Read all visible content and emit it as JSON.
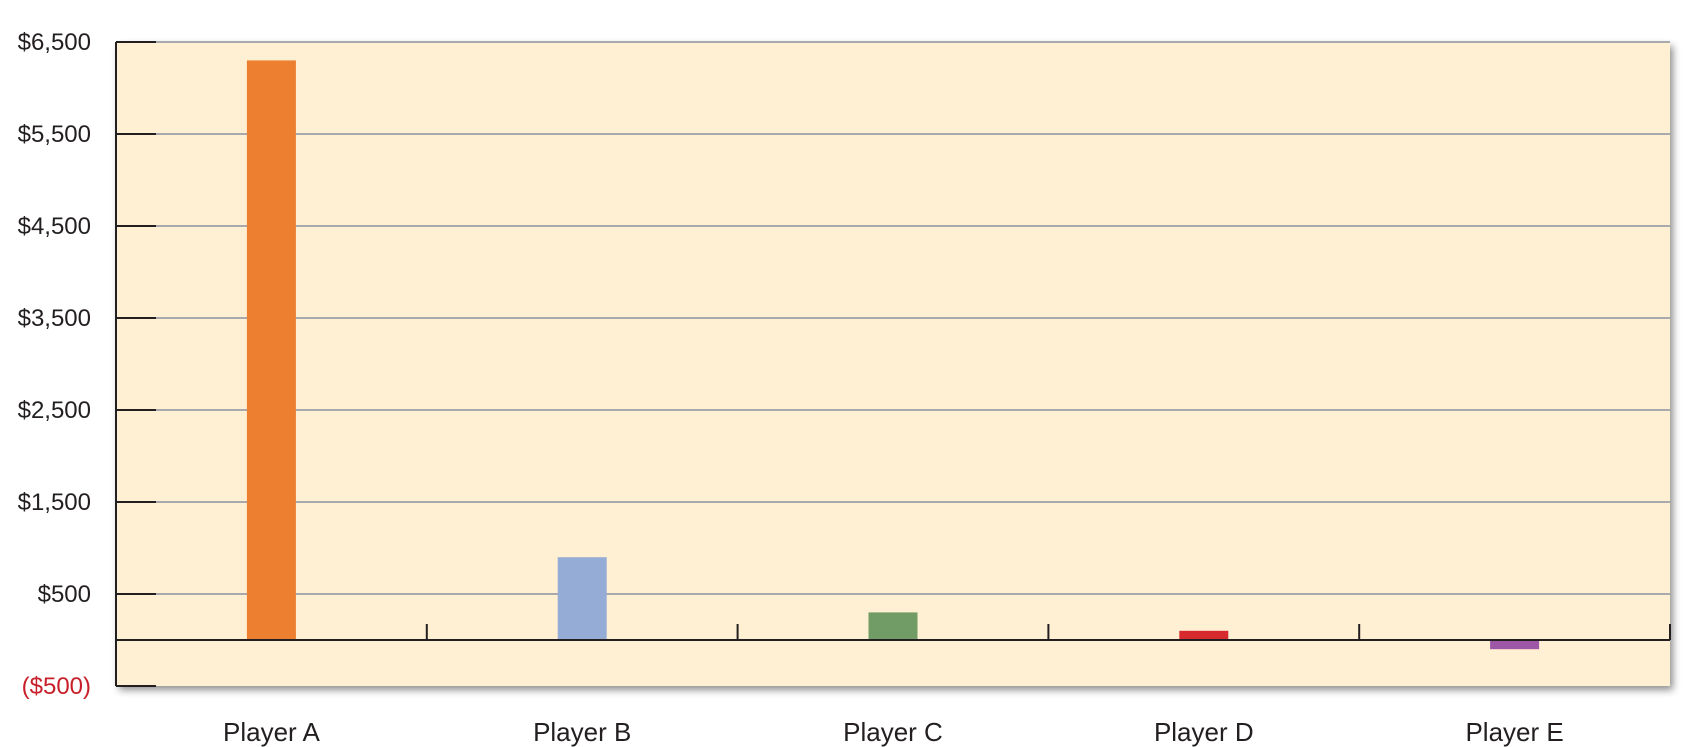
{
  "chart_data": {
    "type": "bar",
    "title": "",
    "xlabel": "",
    "ylabel": "",
    "categories": [
      "Player A",
      "Player B",
      "Player C",
      "Player D",
      "Player E"
    ],
    "values": [
      6300,
      900,
      300,
      100,
      -100
    ],
    "bar_colors": [
      "#ed7f30",
      "#95acd6",
      "#729c65",
      "#d62a2f",
      "#9e57a6"
    ],
    "ylim": [
      -500,
      6500
    ],
    "y_ticks": [
      -500,
      500,
      1500,
      2500,
      3500,
      4500,
      5500,
      6500
    ],
    "y_tick_labels": [
      "($500)",
      "$500",
      "$1,500",
      "$2,500",
      "$3,500",
      "$4,500",
      "$5,500",
      "$6,500"
    ],
    "grid": true,
    "legend": "none",
    "plot_background": "#fff0d4",
    "negative_label_color": "#c8202a"
  }
}
